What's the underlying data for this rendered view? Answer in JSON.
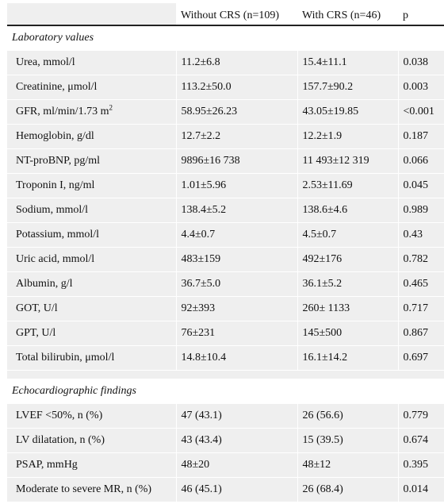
{
  "headers": [
    "",
    "Without CRS (n=109)",
    "With CRS (n=46)",
    "p"
  ],
  "sections": [
    {
      "title": "Laboratory values",
      "rows": [
        [
          "Urea, mmol/l",
          "11.2±6.8",
          "15.4±11.1",
          "0.038"
        ],
        [
          "Creatinine, μmol/l",
          "113.2±50.0",
          "157.7±90.2",
          "0.003"
        ],
        [
          "GFR, ml/min/1.73 m",
          "58.95±26.23",
          "43.05±19.85",
          "<0.001"
        ],
        [
          "Hemoglobin, g/dl",
          "12.7±2.2",
          "12.2±1.9",
          "0.187"
        ],
        [
          "NT-proBNP, pg/ml",
          "9896±16 738",
          "11 493±12 319",
          "0.066"
        ],
        [
          "Troponin I, ng/ml",
          "1.01±5.96",
          "2.53±11.69",
          "0.045"
        ],
        [
          "Sodium, mmol/l",
          "138.4±5.2",
          "138.6±4.6",
          "0.989"
        ],
        [
          "Potassium, mmol/l",
          "4.4±0.7",
          "4.5±0.7",
          "0.43"
        ],
        [
          "Uric acid, mmol/l",
          "483±159",
          "492±176",
          "0.782"
        ],
        [
          "Albumin, g/l",
          "36.7±5.0",
          "36.1±5.2",
          "0.465"
        ],
        [
          "GOT, U/l",
          "92±393",
          "260± 1133",
          "0.717"
        ],
        [
          "GPT, U/l",
          "76±231",
          "145±500",
          "0.867"
        ],
        [
          "Total bilirubin, μmol/l",
          "14.8±10.4",
          "16.1±14.2",
          "0.697"
        ]
      ]
    },
    {
      "title": "Echocardiographic findings",
      "rows": [
        [
          "LVEF <50%, n (%)",
          "47 (43.1)",
          "26 (56.6)",
          "0.779"
        ],
        [
          "LV dilatation, n (%)",
          "43 (43.4)",
          "15 (39.5)",
          "0.674"
        ],
        [
          "PSAP, mmHg",
          "48±20",
          "48±12",
          "0.395"
        ],
        [
          "Moderate to severe MR, n (%)",
          "46 (45.1)",
          "26 (68.4)",
          "0.014"
        ]
      ]
    }
  ],
  "gfr_superscript": "2"
}
